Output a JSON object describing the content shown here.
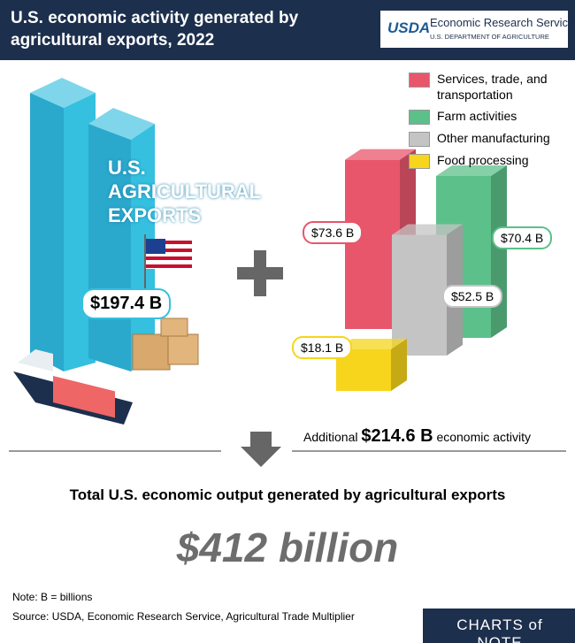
{
  "header": {
    "title": "U.S. economic activity generated by agricultural exports, 2022",
    "logo": "USDA",
    "agency": "Economic Research Service",
    "department": "U.S. DEPARTMENT OF AGRICULTURE"
  },
  "exports": {
    "label": "U.S. AGRICULTURAL EXPORTS",
    "value": 197.4,
    "value_label": "$197.4 B"
  },
  "breakdown": [
    {
      "name": "Services, trade, and transportation",
      "color": "#e8566b",
      "value": 73.6,
      "value_label": "$73.6 B"
    },
    {
      "name": "Farm activities",
      "color": "#5cc08a",
      "value": 70.4,
      "value_label": "$70.4 B"
    },
    {
      "name": "Other manufacturing",
      "color": "#c4c4c4",
      "value": 52.5,
      "value_label": "$52.5 B"
    },
    {
      "name": "Food processing",
      "color": "#f6d51c",
      "value": 18.1,
      "value_label": "$18.1 B"
    }
  ],
  "additional": {
    "prefix": "Additional",
    "value": 214.6,
    "value_label": "$214.6 B",
    "suffix": "economic activity"
  },
  "total": {
    "label": "Total U.S. economic output generated by agricultural exports",
    "value": 412,
    "value_label": "$412 billion"
  },
  "note": "Note: B = billions",
  "source": "Source: USDA, Economic Research Service, Agricultural Trade Multiplier",
  "brand": "CHARTS of NOTE"
}
